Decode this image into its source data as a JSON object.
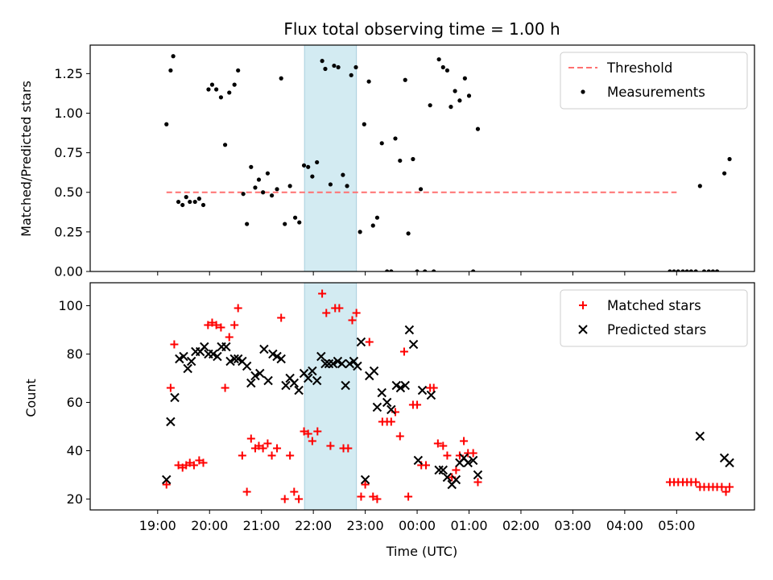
{
  "chart_data": [
    {
      "type": "scatter",
      "title": "Flux total observing time = 1.00 h",
      "xlabel": "",
      "ylabel": "Matched/Predicted stars",
      "ylim": [
        0,
        1.43
      ],
      "yticks": [
        "0.00",
        "0.25",
        "0.50",
        "0.75",
        "1.00",
        "1.25"
      ],
      "ytick_values": [
        0,
        0.25,
        0.5,
        0.75,
        1.0,
        1.25
      ],
      "legend_position": "top-right",
      "highlight_span": {
        "x_start": 21.83,
        "x_end": 22.83,
        "color": "#d3ebf2"
      },
      "threshold": {
        "name": "Threshold",
        "value": 0.5,
        "x_start": 19.17,
        "x_end": 29.0,
        "color": "#ff7070",
        "style": "dashed"
      },
      "series": [
        {
          "name": "Measurements",
          "color": "#000000",
          "marker": "dot",
          "points": [
            [
              19.17,
              0.93
            ],
            [
              19.25,
              1.27
            ],
            [
              19.3,
              1.36
            ],
            [
              19.4,
              0.44
            ],
            [
              19.48,
              0.42
            ],
            [
              19.55,
              0.47
            ],
            [
              19.62,
              0.44
            ],
            [
              19.72,
              0.44
            ],
            [
              19.8,
              0.46
            ],
            [
              19.88,
              0.42
            ],
            [
              19.98,
              1.15
            ],
            [
              20.05,
              1.18
            ],
            [
              20.13,
              1.15
            ],
            [
              20.22,
              1.1
            ],
            [
              20.3,
              0.8
            ],
            [
              20.38,
              1.13
            ],
            [
              20.48,
              1.18
            ],
            [
              20.55,
              1.27
            ],
            [
              20.65,
              0.49
            ],
            [
              20.72,
              0.3
            ],
            [
              20.8,
              0.66
            ],
            [
              20.88,
              0.53
            ],
            [
              20.95,
              0.58
            ],
            [
              21.03,
              0.5
            ],
            [
              21.12,
              0.62
            ],
            [
              21.2,
              0.48
            ],
            [
              21.3,
              0.52
            ],
            [
              21.38,
              1.22
            ],
            [
              21.45,
              0.3
            ],
            [
              21.55,
              0.54
            ],
            [
              21.65,
              0.34
            ],
            [
              21.73,
              0.31
            ],
            [
              21.82,
              0.67
            ],
            [
              21.9,
              0.66
            ],
            [
              21.98,
              0.6
            ],
            [
              22.07,
              0.69
            ],
            [
              22.17,
              1.33
            ],
            [
              22.23,
              1.28
            ],
            [
              22.33,
              0.55
            ],
            [
              22.4,
              1.3
            ],
            [
              22.48,
              1.29
            ],
            [
              22.57,
              0.61
            ],
            [
              22.65,
              0.54
            ],
            [
              22.73,
              1.24
            ],
            [
              22.82,
              1.29
            ],
            [
              22.9,
              0.25
            ],
            [
              22.98,
              0.93
            ],
            [
              23.07,
              1.2
            ],
            [
              23.15,
              0.29
            ],
            [
              23.23,
              0.34
            ],
            [
              23.32,
              0.81
            ],
            [
              23.42,
              0.0
            ],
            [
              23.5,
              0.0
            ],
            [
              23.58,
              0.84
            ],
            [
              23.67,
              0.7
            ],
            [
              23.77,
              1.21
            ],
            [
              23.83,
              0.24
            ],
            [
              23.92,
              0.71
            ],
            [
              24.0,
              0.0
            ],
            [
              24.07,
              0.52
            ],
            [
              24.15,
              0.0
            ],
            [
              24.25,
              1.05
            ],
            [
              24.32,
              0.0
            ],
            [
              24.42,
              1.34
            ],
            [
              24.5,
              1.29
            ],
            [
              24.58,
              1.27
            ],
            [
              24.65,
              1.04
            ],
            [
              24.73,
              1.14
            ],
            [
              24.82,
              1.08
            ],
            [
              24.92,
              1.22
            ],
            [
              25.0,
              1.11
            ],
            [
              25.08,
              0.0
            ],
            [
              25.17,
              0.9
            ],
            [
              28.87,
              0.0
            ],
            [
              28.95,
              0.0
            ],
            [
              29.03,
              0.0
            ],
            [
              29.12,
              0.0
            ],
            [
              29.2,
              0.0
            ],
            [
              29.28,
              0.0
            ],
            [
              29.37,
              0.0
            ],
            [
              29.45,
              0.54
            ],
            [
              29.53,
              0.0
            ],
            [
              29.62,
              0.0
            ],
            [
              29.7,
              0.0
            ],
            [
              29.78,
              0.0
            ],
            [
              29.92,
              0.62
            ],
            [
              30.02,
              0.71
            ]
          ]
        }
      ]
    },
    {
      "type": "scatter",
      "title": "",
      "xlabel": "Time (UTC)",
      "ylabel": "Count",
      "ylim": [
        15.5,
        109.5
      ],
      "yticks": [
        "20",
        "40",
        "60",
        "80",
        "100"
      ],
      "ytick_values": [
        20,
        40,
        60,
        80,
        100
      ],
      "x_axis": "time of day, hours (values past 24 are the next day)",
      "xticks": [
        "19:00",
        "20:00",
        "21:00",
        "22:00",
        "23:00",
        "00:00",
        "01:00",
        "02:00",
        "03:00",
        "04:00",
        "05:00"
      ],
      "xtick_values": [
        19,
        20,
        21,
        22,
        23,
        24,
        25,
        26,
        27,
        28,
        29
      ],
      "xlim": [
        17.7,
        30.5
      ],
      "legend_position": "top-right",
      "highlight_span": {
        "x_start": 21.83,
        "x_end": 22.83,
        "color": "#d3ebf2"
      },
      "series": [
        {
          "name": "Matched stars",
          "color": "#ff0000",
          "marker": "plus",
          "points": [
            [
              19.17,
              26
            ],
            [
              19.25,
              66
            ],
            [
              19.32,
              84
            ],
            [
              19.4,
              34
            ],
            [
              19.48,
              33
            ],
            [
              19.55,
              34
            ],
            [
              19.62,
              35
            ],
            [
              19.7,
              34
            ],
            [
              19.8,
              36
            ],
            [
              19.88,
              35
            ],
            [
              19.97,
              92
            ],
            [
              20.05,
              93
            ],
            [
              20.13,
              92
            ],
            [
              20.22,
              91
            ],
            [
              20.3,
              66
            ],
            [
              20.38,
              87
            ],
            [
              20.48,
              92
            ],
            [
              20.55,
              99
            ],
            [
              20.63,
              38
            ],
            [
              20.72,
              23
            ],
            [
              20.8,
              45
            ],
            [
              20.88,
              41
            ],
            [
              20.95,
              42
            ],
            [
              21.03,
              41
            ],
            [
              21.12,
              43
            ],
            [
              21.2,
              38
            ],
            [
              21.3,
              41
            ],
            [
              21.38,
              95
            ],
            [
              21.45,
              20
            ],
            [
              21.55,
              38
            ],
            [
              21.63,
              23
            ],
            [
              21.72,
              20
            ],
            [
              21.82,
              48
            ],
            [
              21.9,
              47
            ],
            [
              21.98,
              44
            ],
            [
              22.08,
              48
            ],
            [
              22.17,
              105
            ],
            [
              22.25,
              97
            ],
            [
              22.33,
              42
            ],
            [
              22.42,
              99
            ],
            [
              22.5,
              99
            ],
            [
              22.58,
              41
            ],
            [
              22.67,
              41
            ],
            [
              22.75,
              94
            ],
            [
              22.83,
              97
            ],
            [
              22.92,
              21
            ],
            [
              23.0,
              26
            ],
            [
              23.08,
              85
            ],
            [
              23.15,
              21
            ],
            [
              23.23,
              20
            ],
            [
              23.33,
              52
            ],
            [
              23.42,
              52
            ],
            [
              23.5,
              52
            ],
            [
              23.58,
              56
            ],
            [
              23.67,
              46
            ],
            [
              23.75,
              81
            ],
            [
              23.83,
              21
            ],
            [
              23.92,
              59
            ],
            [
              24.0,
              59
            ],
            [
              24.08,
              34
            ],
            [
              24.17,
              34
            ],
            [
              24.25,
              66
            ],
            [
              24.32,
              66
            ],
            [
              24.4,
              43
            ],
            [
              24.5,
              42
            ],
            [
              24.58,
              38
            ],
            [
              24.67,
              29
            ],
            [
              24.75,
              32
            ],
            [
              24.82,
              38
            ],
            [
              24.9,
              44
            ],
            [
              24.98,
              39
            ],
            [
              25.08,
              39
            ],
            [
              25.17,
              27
            ],
            [
              28.87,
              27
            ],
            [
              28.95,
              27
            ],
            [
              29.03,
              27
            ],
            [
              29.12,
              27
            ],
            [
              29.2,
              27
            ],
            [
              29.28,
              27
            ],
            [
              29.37,
              27
            ],
            [
              29.45,
              25
            ],
            [
              29.53,
              25
            ],
            [
              29.62,
              25
            ],
            [
              29.7,
              25
            ],
            [
              29.78,
              25
            ],
            [
              29.87,
              25
            ],
            [
              29.95,
              23
            ],
            [
              30.02,
              25
            ]
          ]
        },
        {
          "name": "Predicted stars",
          "color": "#000000",
          "marker": "x",
          "points": [
            [
              19.17,
              28
            ],
            [
              19.25,
              52
            ],
            [
              19.33,
              62
            ],
            [
              19.42,
              78
            ],
            [
              19.5,
              79
            ],
            [
              19.58,
              74
            ],
            [
              19.65,
              77
            ],
            [
              19.73,
              81
            ],
            [
              19.82,
              81
            ],
            [
              19.9,
              83
            ],
            [
              19.98,
              80
            ],
            [
              20.07,
              80
            ],
            [
              20.15,
              79
            ],
            [
              20.23,
              83
            ],
            [
              20.32,
              83
            ],
            [
              20.4,
              77
            ],
            [
              20.48,
              78
            ],
            [
              20.55,
              78
            ],
            [
              20.63,
              77
            ],
            [
              20.72,
              75
            ],
            [
              20.8,
              68
            ],
            [
              20.88,
              71
            ],
            [
              20.97,
              72
            ],
            [
              21.05,
              82
            ],
            [
              21.13,
              69
            ],
            [
              21.22,
              80
            ],
            [
              21.3,
              79
            ],
            [
              21.38,
              78
            ],
            [
              21.47,
              67
            ],
            [
              21.55,
              70
            ],
            [
              21.63,
              68
            ],
            [
              21.72,
              65
            ],
            [
              21.82,
              72
            ],
            [
              21.9,
              70
            ],
            [
              21.98,
              73
            ],
            [
              22.07,
              69
            ],
            [
              22.15,
              79
            ],
            [
              22.23,
              76
            ],
            [
              22.3,
              76
            ],
            [
              22.38,
              76
            ],
            [
              22.47,
              77
            ],
            [
              22.55,
              76
            ],
            [
              22.62,
              67
            ],
            [
              22.7,
              76
            ],
            [
              22.78,
              77
            ],
            [
              22.85,
              75
            ],
            [
              22.92,
              85
            ],
            [
              23.0,
              28
            ],
            [
              23.08,
              71
            ],
            [
              23.17,
              73
            ],
            [
              23.23,
              58
            ],
            [
              23.32,
              64
            ],
            [
              23.42,
              60
            ],
            [
              23.5,
              57
            ],
            [
              23.6,
              67
            ],
            [
              23.68,
              66
            ],
            [
              23.77,
              67
            ],
            [
              23.85,
              90
            ],
            [
              23.93,
              84
            ],
            [
              24.02,
              36
            ],
            [
              24.1,
              65
            ],
            [
              24.27,
              63
            ],
            [
              24.42,
              32
            ],
            [
              24.5,
              32
            ],
            [
              24.58,
              29
            ],
            [
              24.67,
              26
            ],
            [
              24.75,
              28
            ],
            [
              24.82,
              35
            ],
            [
              24.9,
              37
            ],
            [
              24.98,
              35
            ],
            [
              25.08,
              36
            ],
            [
              25.17,
              30
            ],
            [
              29.45,
              46
            ],
            [
              29.92,
              37
            ],
            [
              30.02,
              35
            ]
          ]
        }
      ]
    }
  ]
}
